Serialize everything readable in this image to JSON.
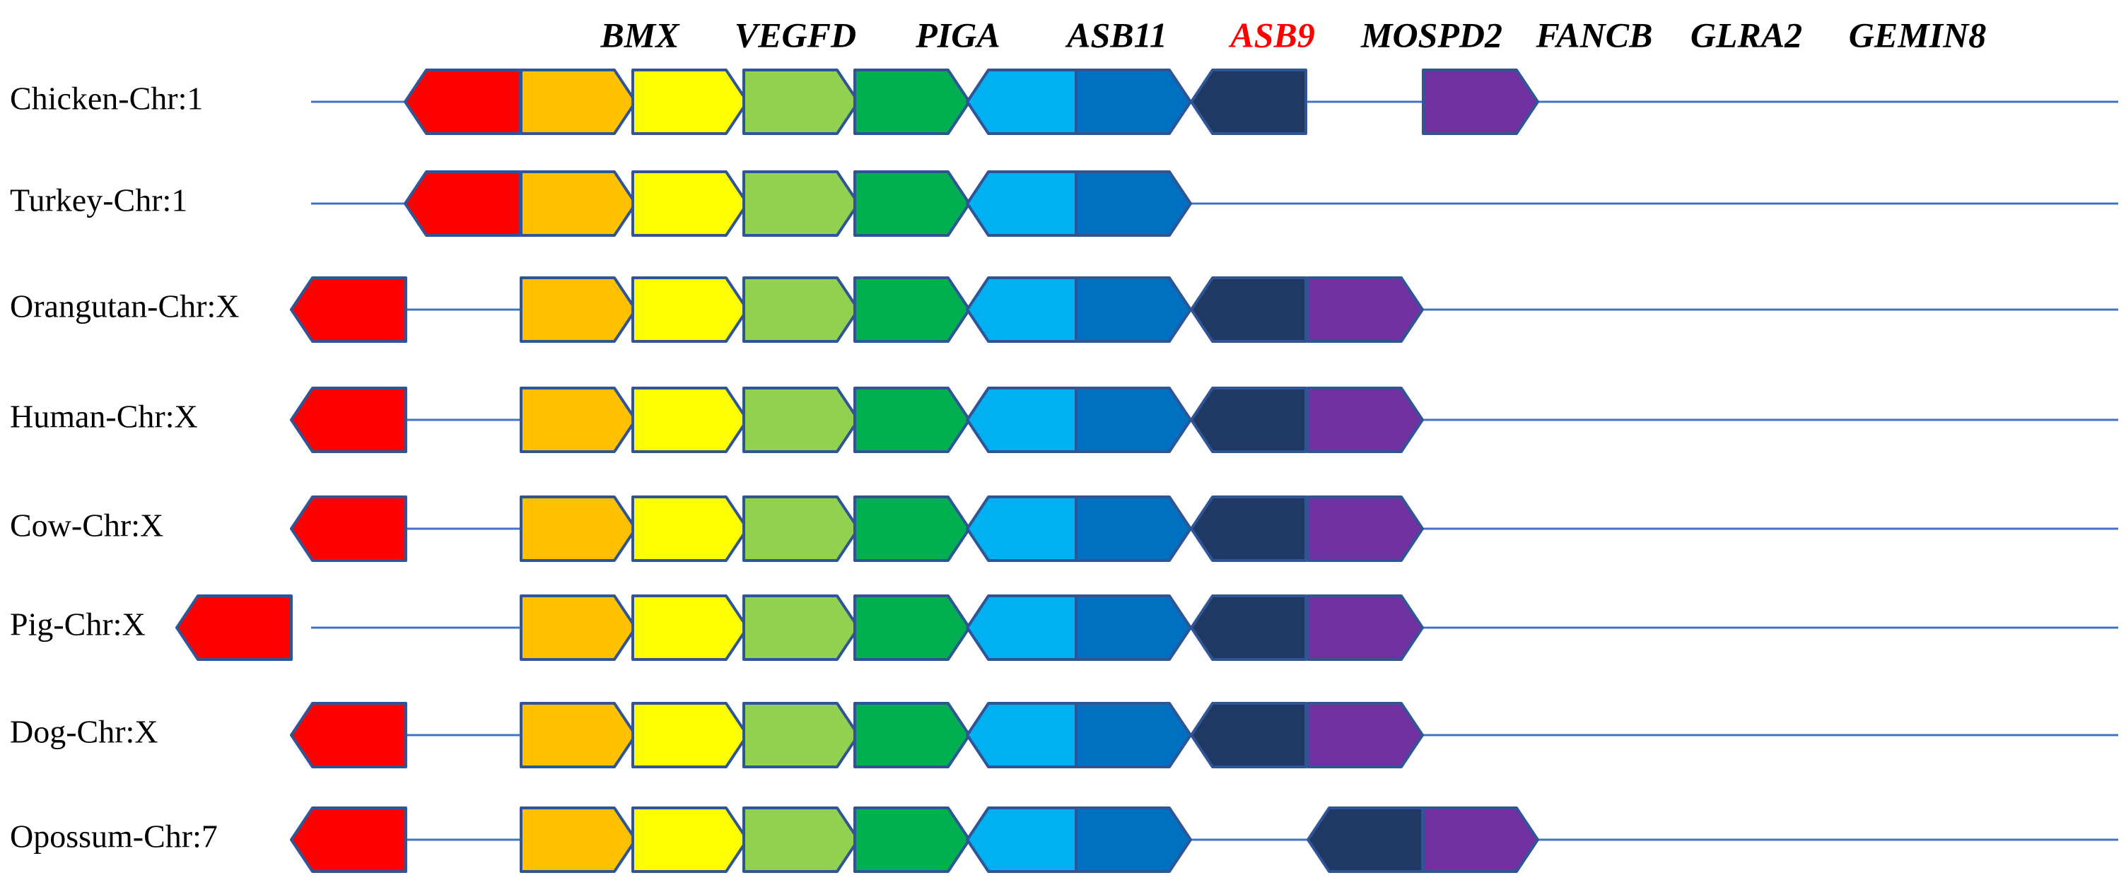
{
  "genes": [
    {
      "symbol": "BMX",
      "color": "#FF0000",
      "highlight": false
    },
    {
      "symbol": "VEGFD",
      "color": "#FFC000",
      "highlight": false
    },
    {
      "symbol": "PIGA",
      "color": "#FFFF00",
      "highlight": false
    },
    {
      "symbol": "ASB11",
      "color": "#92D050",
      "highlight": false
    },
    {
      "symbol": "ASB9",
      "color": "#00B050",
      "highlight": true
    },
    {
      "symbol": "MOSPD2",
      "color": "#00B0F0",
      "highlight": false
    },
    {
      "symbol": "FANCB",
      "color": "#0070C0",
      "highlight": false
    },
    {
      "symbol": "GLRA2",
      "color": "#203864",
      "highlight": false
    },
    {
      "symbol": "GEMIN8",
      "color": "#7030A0",
      "highlight": false
    }
  ],
  "highlight_color": "#FF0000",
  "line_color": "#4472C4",
  "outline_color": "#2F5597",
  "species": [
    {
      "label": "Chicken-Chr:1",
      "genes": [
        {
          "symbol": "BMX",
          "dir": "left",
          "slot": 2
        },
        {
          "symbol": "VEGFD",
          "dir": "right",
          "slot": 3
        },
        {
          "symbol": "PIGA",
          "dir": "right",
          "slot": 4
        },
        {
          "symbol": "ASB11",
          "dir": "right",
          "slot": 5
        },
        {
          "symbol": "ASB9",
          "dir": "right",
          "slot": 6
        },
        {
          "symbol": "MOSPD2",
          "dir": "left",
          "slot": 7
        },
        {
          "symbol": "FANCB",
          "dir": "right",
          "slot": 8
        },
        {
          "symbol": "GLRA2",
          "dir": "left",
          "slot": 9
        },
        {
          "symbol": "GEMIN8",
          "dir": "right",
          "slot": 11
        }
      ]
    },
    {
      "label": "Turkey-Chr:1",
      "genes": [
        {
          "symbol": "BMX",
          "dir": "left",
          "slot": 2
        },
        {
          "symbol": "VEGFD",
          "dir": "right",
          "slot": 3
        },
        {
          "symbol": "PIGA",
          "dir": "right",
          "slot": 4
        },
        {
          "symbol": "ASB11",
          "dir": "right",
          "slot": 5
        },
        {
          "symbol": "ASB9",
          "dir": "right",
          "slot": 6
        },
        {
          "symbol": "MOSPD2",
          "dir": "left",
          "slot": 7
        },
        {
          "symbol": "FANCB",
          "dir": "right",
          "slot": 8
        }
      ]
    },
    {
      "label": "Orangutan-Chr:X",
      "genes": [
        {
          "symbol": "BMX",
          "dir": "left",
          "slot": 1
        },
        {
          "symbol": "VEGFD",
          "dir": "right",
          "slot": 3
        },
        {
          "symbol": "PIGA",
          "dir": "right",
          "slot": 4
        },
        {
          "symbol": "ASB11",
          "dir": "right",
          "slot": 5
        },
        {
          "symbol": "ASB9",
          "dir": "right",
          "slot": 6
        },
        {
          "symbol": "MOSPD2",
          "dir": "left",
          "slot": 7
        },
        {
          "symbol": "FANCB",
          "dir": "right",
          "slot": 8
        },
        {
          "symbol": "GLRA2",
          "dir": "left",
          "slot": 9
        },
        {
          "symbol": "GEMIN8",
          "dir": "right",
          "slot": 10
        }
      ]
    },
    {
      "label": "Human-Chr:X",
      "genes": [
        {
          "symbol": "BMX",
          "dir": "left",
          "slot": 1
        },
        {
          "symbol": "VEGFD",
          "dir": "right",
          "slot": 3
        },
        {
          "symbol": "PIGA",
          "dir": "right",
          "slot": 4
        },
        {
          "symbol": "ASB11",
          "dir": "right",
          "slot": 5
        },
        {
          "symbol": "ASB9",
          "dir": "right",
          "slot": 6
        },
        {
          "symbol": "MOSPD2",
          "dir": "left",
          "slot": 7
        },
        {
          "symbol": "FANCB",
          "dir": "right",
          "slot": 8
        },
        {
          "symbol": "GLRA2",
          "dir": "left",
          "slot": 9
        },
        {
          "symbol": "GEMIN8",
          "dir": "right",
          "slot": 10
        }
      ]
    },
    {
      "label": "Cow-Chr:X",
      "genes": [
        {
          "symbol": "BMX",
          "dir": "left",
          "slot": 1
        },
        {
          "symbol": "VEGFD",
          "dir": "right",
          "slot": 3
        },
        {
          "symbol": "PIGA",
          "dir": "right",
          "slot": 4
        },
        {
          "symbol": "ASB11",
          "dir": "right",
          "slot": 5
        },
        {
          "symbol": "ASB9",
          "dir": "right",
          "slot": 6
        },
        {
          "symbol": "MOSPD2",
          "dir": "left",
          "slot": 7
        },
        {
          "symbol": "FANCB",
          "dir": "right",
          "slot": 8
        },
        {
          "symbol": "GLRA2",
          "dir": "left",
          "slot": 9
        },
        {
          "symbol": "GEMIN8",
          "dir": "right",
          "slot": 10
        }
      ]
    },
    {
      "label": "Pig-Chr:X",
      "genes": [
        {
          "symbol": "BMX",
          "dir": "left",
          "slot": 0
        },
        {
          "symbol": "VEGFD",
          "dir": "right",
          "slot": 3
        },
        {
          "symbol": "PIGA",
          "dir": "right",
          "slot": 4
        },
        {
          "symbol": "ASB11",
          "dir": "right",
          "slot": 5
        },
        {
          "symbol": "ASB9",
          "dir": "right",
          "slot": 6
        },
        {
          "symbol": "MOSPD2",
          "dir": "left",
          "slot": 7
        },
        {
          "symbol": "FANCB",
          "dir": "right",
          "slot": 8
        },
        {
          "symbol": "GLRA2",
          "dir": "left",
          "slot": 9
        },
        {
          "symbol": "GEMIN8",
          "dir": "right",
          "slot": 10
        }
      ]
    },
    {
      "label": "Dog-Chr:X",
      "genes": [
        {
          "symbol": "BMX",
          "dir": "left",
          "slot": 1
        },
        {
          "symbol": "VEGFD",
          "dir": "right",
          "slot": 3
        },
        {
          "symbol": "PIGA",
          "dir": "right",
          "slot": 4
        },
        {
          "symbol": "ASB11",
          "dir": "right",
          "slot": 5
        },
        {
          "symbol": "ASB9",
          "dir": "right",
          "slot": 6
        },
        {
          "symbol": "MOSPD2",
          "dir": "left",
          "slot": 7
        },
        {
          "symbol": "FANCB",
          "dir": "right",
          "slot": 8
        },
        {
          "symbol": "GLRA2",
          "dir": "left",
          "slot": 9
        },
        {
          "symbol": "GEMIN8",
          "dir": "right",
          "slot": 10
        }
      ]
    },
    {
      "label": "Opossum-Chr:7",
      "genes": [
        {
          "symbol": "BMX",
          "dir": "left",
          "slot": 1
        },
        {
          "symbol": "VEGFD",
          "dir": "right",
          "slot": 3
        },
        {
          "symbol": "PIGA",
          "dir": "right",
          "slot": 4
        },
        {
          "symbol": "ASB11",
          "dir": "right",
          "slot": 5
        },
        {
          "symbol": "ASB9",
          "dir": "right",
          "slot": 6
        },
        {
          "symbol": "MOSPD2",
          "dir": "left",
          "slot": 7
        },
        {
          "symbol": "FANCB",
          "dir": "right",
          "slot": 8
        },
        {
          "symbol": "GLRA2",
          "dir": "left",
          "slot": 10
        },
        {
          "symbol": "GEMIN8",
          "dir": "right",
          "slot": 11
        }
      ]
    }
  ]
}
